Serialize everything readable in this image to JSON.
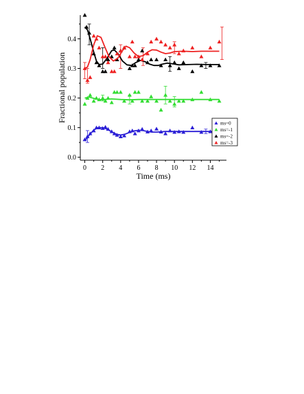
{
  "chart_data": {
    "type": "scatter",
    "xlabel": "Time (ms)",
    "ylabel": "Fractional population",
    "xlim": [
      -0.5,
      15.8
    ],
    "ylim": [
      -0.01,
      0.48
    ],
    "xticks": [
      0,
      2,
      4,
      6,
      8,
      10,
      12,
      14
    ],
    "yticks": [
      0.0,
      0.1,
      0.2,
      0.3,
      0.4
    ],
    "ytick_labels": [
      "0.0",
      "0.1",
      "0.2",
      "0.3",
      "0.4"
    ],
    "legend_position": "lower-right",
    "grid": false,
    "series": [
      {
        "name": "ms=0",
        "color": "#2b1fd6",
        "points": [
          [
            0,
            0.06
          ],
          [
            0.3,
            0.07
          ],
          [
            0.6,
            0.08
          ],
          [
            1,
            0.09
          ],
          [
            1.3,
            0.1
          ],
          [
            1.6,
            0.1
          ],
          [
            2,
            0.098
          ],
          [
            2.3,
            0.102
          ],
          [
            2.6,
            0.095
          ],
          [
            3,
            0.087
          ],
          [
            3.3,
            0.08
          ],
          [
            3.6,
            0.075
          ],
          [
            4,
            0.07
          ],
          [
            4.4,
            0.073
          ],
          [
            5,
            0.087
          ],
          [
            5.3,
            0.09
          ],
          [
            5.6,
            0.08
          ],
          [
            6,
            0.09
          ],
          [
            6.4,
            0.095
          ],
          [
            7,
            0.086
          ],
          [
            7.4,
            0.09
          ],
          [
            8,
            0.096
          ],
          [
            8.5,
            0.086
          ],
          [
            9,
            0.08
          ],
          [
            9.5,
            0.09
          ],
          [
            10,
            0.085
          ],
          [
            10.5,
            0.087
          ],
          [
            11,
            0.085
          ],
          [
            12,
            0.1
          ],
          [
            13,
            0.085
          ],
          [
            14,
            0.087
          ],
          [
            15,
            0.088
          ]
        ],
        "fit": [
          [
            0,
            0.055
          ],
          [
            0.5,
            0.075
          ],
          [
            1,
            0.092
          ],
          [
            1.5,
            0.1
          ],
          [
            2,
            0.1
          ],
          [
            2.5,
            0.095
          ],
          [
            3,
            0.086
          ],
          [
            3.5,
            0.078
          ],
          [
            4,
            0.075
          ],
          [
            4.5,
            0.078
          ],
          [
            5,
            0.084
          ],
          [
            5.5,
            0.089
          ],
          [
            6,
            0.091
          ],
          [
            6.5,
            0.09
          ],
          [
            7,
            0.087
          ],
          [
            7.5,
            0.085
          ],
          [
            8,
            0.085
          ],
          [
            9,
            0.087
          ],
          [
            10,
            0.087
          ],
          [
            11,
            0.087
          ],
          [
            12,
            0.087
          ],
          [
            13,
            0.087
          ],
          [
            14,
            0.087
          ],
          [
            15,
            0.087
          ]
        ]
      },
      {
        "name": "ms=-1",
        "color": "#33dd33",
        "points": [
          [
            0,
            0.18
          ],
          [
            0.3,
            0.2
          ],
          [
            0.6,
            0.21
          ],
          [
            1,
            0.19
          ],
          [
            1.3,
            0.2
          ],
          [
            1.6,
            0.195
          ],
          [
            2,
            0.2
          ],
          [
            2.3,
            0.19
          ],
          [
            2.6,
            0.2
          ],
          [
            3,
            0.185
          ],
          [
            3.3,
            0.22
          ],
          [
            3.6,
            0.22
          ],
          [
            4,
            0.22
          ],
          [
            4.4,
            0.19
          ],
          [
            5,
            0.21
          ],
          [
            5.3,
            0.19
          ],
          [
            5.6,
            0.22
          ],
          [
            6,
            0.22
          ],
          [
            6.4,
            0.19
          ],
          [
            7,
            0.19
          ],
          [
            7.4,
            0.205
          ],
          [
            8,
            0.19
          ],
          [
            8.5,
            0.16
          ],
          [
            9,
            0.21
          ],
          [
            9.5,
            0.19
          ],
          [
            10,
            0.18
          ],
          [
            10.5,
            0.19
          ],
          [
            11,
            0.19
          ],
          [
            12,
            0.195
          ],
          [
            13,
            0.22
          ],
          [
            14,
            0.195
          ],
          [
            15,
            0.19
          ]
        ],
        "fit": [
          [
            0,
            0.2
          ],
          [
            0.5,
            0.203
          ],
          [
            1,
            0.199
          ],
          [
            1.5,
            0.195
          ],
          [
            2,
            0.194
          ],
          [
            2.5,
            0.196
          ],
          [
            3,
            0.197
          ],
          [
            4,
            0.195
          ],
          [
            5,
            0.194
          ],
          [
            6,
            0.195
          ],
          [
            7,
            0.195
          ],
          [
            8,
            0.195
          ],
          [
            9,
            0.195
          ],
          [
            10,
            0.195
          ],
          [
            11,
            0.195
          ],
          [
            12,
            0.195
          ],
          [
            13,
            0.195
          ],
          [
            14,
            0.195
          ],
          [
            15,
            0.195
          ]
        ]
      },
      {
        "name": "ms=-2",
        "color": "#000000",
        "points": [
          [
            0,
            0.48
          ],
          [
            0.2,
            0.44
          ],
          [
            0.5,
            0.42
          ],
          [
            1,
            0.35
          ],
          [
            1.3,
            0.32
          ],
          [
            1.6,
            0.31
          ],
          [
            2,
            0.29
          ],
          [
            2.3,
            0.29
          ],
          [
            2.6,
            0.33
          ],
          [
            3,
            0.34
          ],
          [
            3.3,
            0.37
          ],
          [
            3.6,
            0.33
          ],
          [
            4,
            0.36
          ],
          [
            4.4,
            0.37
          ],
          [
            5,
            0.3
          ],
          [
            5.3,
            0.31
          ],
          [
            5.6,
            0.31
          ],
          [
            6,
            0.33
          ],
          [
            6.4,
            0.36
          ],
          [
            7,
            0.32
          ],
          [
            7.4,
            0.33
          ],
          [
            8,
            0.33
          ],
          [
            8.5,
            0.31
          ],
          [
            9,
            0.33
          ],
          [
            9.5,
            0.31
          ],
          [
            10,
            0.32
          ],
          [
            10.5,
            0.3
          ],
          [
            11,
            0.32
          ],
          [
            12,
            0.29
          ],
          [
            13,
            0.31
          ],
          [
            14,
            0.31
          ],
          [
            15,
            0.31
          ]
        ],
        "fit": [
          [
            0,
            0.44
          ],
          [
            0.3,
            0.43
          ],
          [
            0.6,
            0.4
          ],
          [
            1,
            0.355
          ],
          [
            1.3,
            0.325
          ],
          [
            1.6,
            0.313
          ],
          [
            2,
            0.315
          ],
          [
            2.5,
            0.335
          ],
          [
            3,
            0.36
          ],
          [
            3.3,
            0.362
          ],
          [
            3.7,
            0.35
          ],
          [
            4.2,
            0.325
          ],
          [
            4.7,
            0.312
          ],
          [
            5.2,
            0.31
          ],
          [
            5.7,
            0.32
          ],
          [
            6.2,
            0.327
          ],
          [
            6.7,
            0.323
          ],
          [
            7.2,
            0.315
          ],
          [
            7.7,
            0.31
          ],
          [
            8.2,
            0.31
          ],
          [
            8.7,
            0.315
          ],
          [
            9.2,
            0.318
          ],
          [
            9.7,
            0.316
          ],
          [
            10.5,
            0.312
          ],
          [
            11.5,
            0.313
          ],
          [
            12.5,
            0.314
          ],
          [
            13.5,
            0.313
          ],
          [
            14.5,
            0.313
          ],
          [
            15,
            0.313
          ]
        ]
      },
      {
        "name": "ms=-3",
        "color": "#ee2222",
        "points": [
          [
            0,
            0.3
          ],
          [
            0.3,
            0.26
          ],
          [
            0.6,
            0.27
          ],
          [
            1,
            0.41
          ],
          [
            1.3,
            0.4
          ],
          [
            1.6,
            0.37
          ],
          [
            2,
            0.34
          ],
          [
            2.3,
            0.34
          ],
          [
            2.6,
            0.32
          ],
          [
            3,
            0.29
          ],
          [
            3.3,
            0.29
          ],
          [
            3.6,
            0.35
          ],
          [
            4,
            0.36
          ],
          [
            4.4,
            0.37
          ],
          [
            5,
            0.34
          ],
          [
            5.3,
            0.39
          ],
          [
            5.6,
            0.34
          ],
          [
            6,
            0.34
          ],
          [
            6.4,
            0.33
          ],
          [
            7,
            0.35
          ],
          [
            7.4,
            0.39
          ],
          [
            8,
            0.4
          ],
          [
            8.5,
            0.39
          ],
          [
            9,
            0.38
          ],
          [
            9.5,
            0.37
          ],
          [
            10,
            0.38
          ],
          [
            10.5,
            0.35
          ],
          [
            11,
            0.36
          ],
          [
            12,
            0.37
          ],
          [
            13,
            0.34
          ],
          [
            14,
            0.37
          ],
          [
            15,
            0.39
          ]
        ],
        "fit": [
          [
            0,
            0.3
          ],
          [
            0.3,
            0.305
          ],
          [
            0.6,
            0.33
          ],
          [
            1,
            0.38
          ],
          [
            1.4,
            0.41
          ],
          [
            1.8,
            0.405
          ],
          [
            2.2,
            0.375
          ],
          [
            2.7,
            0.34
          ],
          [
            3.2,
            0.325
          ],
          [
            3.7,
            0.335
          ],
          [
            4.2,
            0.36
          ],
          [
            4.6,
            0.375
          ],
          [
            5,
            0.37
          ],
          [
            5.5,
            0.352
          ],
          [
            6,
            0.34
          ],
          [
            6.5,
            0.343
          ],
          [
            7,
            0.355
          ],
          [
            7.5,
            0.363
          ],
          [
            8,
            0.362
          ],
          [
            8.5,
            0.355
          ],
          [
            9,
            0.35
          ],
          [
            9.5,
            0.352
          ],
          [
            10,
            0.357
          ],
          [
            11,
            0.358
          ],
          [
            12,
            0.357
          ],
          [
            13,
            0.358
          ],
          [
            14,
            0.358
          ],
          [
            15,
            0.358
          ]
        ]
      }
    ],
    "error_bars": [
      {
        "series": "ms=-3",
        "x": 0.0,
        "y": 0.3,
        "low": 0.265,
        "high": 0.32
      },
      {
        "series": "ms=-3",
        "x": 0.3,
        "y": 0.27,
        "low": 0.25,
        "high": 0.3
      },
      {
        "series": "ms=-2",
        "x": 0.5,
        "y": 0.42,
        "low": 0.38,
        "high": 0.45
      },
      {
        "series": "ms=-3",
        "x": 4.0,
        "y": 0.36,
        "low": 0.3,
        "high": 0.38
      },
      {
        "series": "ms=-3",
        "x": 6.5,
        "y": 0.34,
        "low": 0.31,
        "high": 0.37
      },
      {
        "series": "ms=-2",
        "x": 9.5,
        "y": 0.31,
        "low": 0.29,
        "high": 0.34
      },
      {
        "series": "ms=-3",
        "x": 10.0,
        "y": 0.38,
        "low": 0.35,
        "high": 0.39
      },
      {
        "series": "ms=-3",
        "x": 15.3,
        "y": 0.39,
        "low": 0.33,
        "high": 0.44
      },
      {
        "series": "ms=-2",
        "x": 13.5,
        "y": 0.31,
        "low": 0.3,
        "high": 0.32
      },
      {
        "series": "ms=-1",
        "x": 9.0,
        "y": 0.21,
        "low": 0.18,
        "high": 0.24
      },
      {
        "series": "ms=-1",
        "x": 10.0,
        "y": 0.19,
        "low": 0.17,
        "high": 0.205
      },
      {
        "series": "ms=-1",
        "x": 2.0,
        "y": 0.2,
        "low": 0.19,
        "high": 0.21
      },
      {
        "series": "ms=-1",
        "x": 5.0,
        "y": 0.2,
        "low": 0.18,
        "high": 0.21
      },
      {
        "series": "ms=-2",
        "x": 2.0,
        "y": 0.34,
        "low": 0.3,
        "high": 0.37
      },
      {
        "series": "ms=0",
        "x": 0.3,
        "y": 0.07,
        "low": 0.05,
        "high": 0.09
      },
      {
        "series": "ms=0",
        "x": 13.5,
        "y": 0.087,
        "low": 0.08,
        "high": 0.095
      }
    ]
  }
}
